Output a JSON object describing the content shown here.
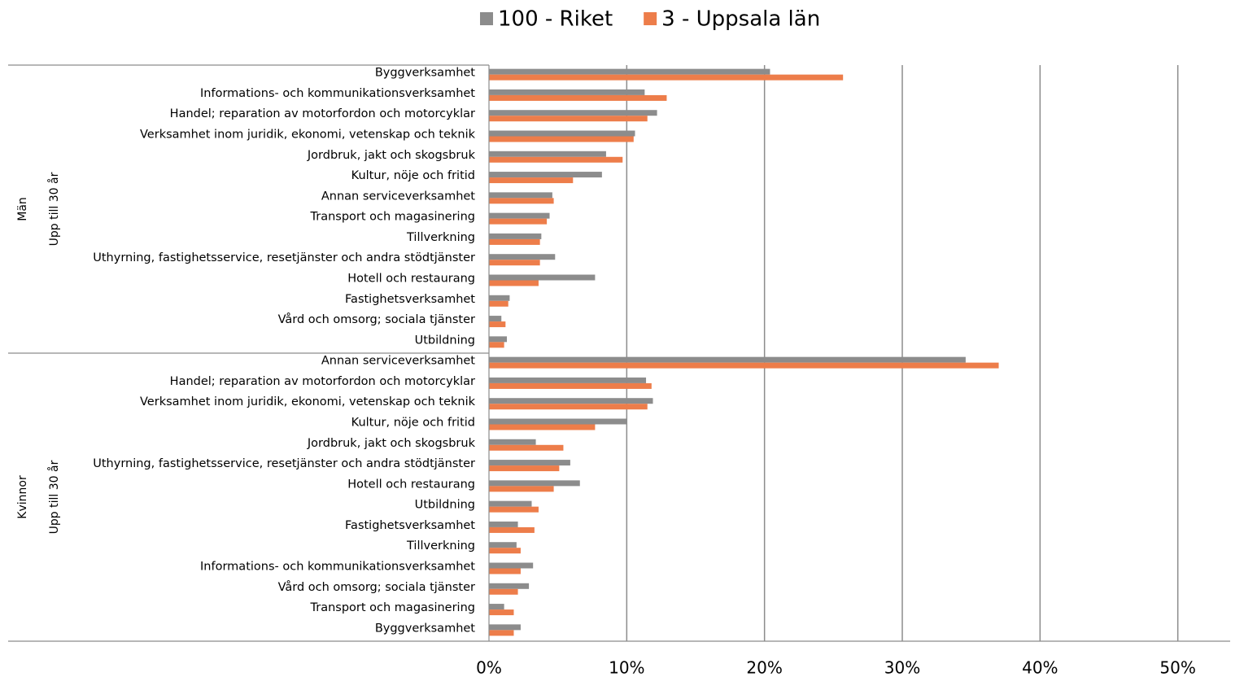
{
  "chart_data": {
    "type": "bar",
    "orientation": "horizontal",
    "groups": [
      {
        "label": "Män",
        "sublabel": "Upp till 30 år",
        "categories": [
          "Byggverksamhet",
          "Informations- och kommunikationsverksamhet",
          "Handel; reparation av motorfordon och motorcyklar",
          "Verksamhet inom juridik, ekonomi, vetenskap och teknik",
          "Jordbruk, jakt och skogsbruk",
          "Kultur, nöje och fritid",
          "Annan serviceverksamhet",
          "Transport och magasinering",
          "Tillverkning",
          "Uthyrning, fastighetsservice, resetjänster och andra stödtjänster",
          "Hotell och restaurang",
          "Fastighetsverksamhet",
          "Vård och omsorg; sociala tjänster",
          "Utbildning"
        ]
      },
      {
        "label": "Kvinnor",
        "sublabel": "Upp till 30 år",
        "categories": [
          "Annan serviceverksamhet",
          "Handel; reparation av motorfordon och motorcyklar",
          "Verksamhet inom juridik, ekonomi, vetenskap och teknik",
          "Kultur, nöje och fritid",
          "Jordbruk, jakt och skogsbruk",
          "Uthyrning, fastighetsservice, resetjänster och andra stödtjänster",
          "Hotell och restaurang",
          "Utbildning",
          "Fastighetsverksamhet",
          "Tillverkning",
          "Informations- och kommunikationsverksamhet",
          "Vård och omsorg; sociala tjänster",
          "Transport och magasinering",
          "Byggverksamhet"
        ]
      }
    ],
    "series": [
      {
        "name": "100 - Riket",
        "color": "#8c8c8c",
        "values": [
          20.4,
          11.3,
          12.2,
          10.6,
          8.5,
          8.2,
          4.6,
          4.4,
          3.8,
          4.8,
          7.7,
          1.5,
          0.9,
          1.3,
          34.6,
          11.4,
          11.9,
          10.0,
          3.4,
          5.9,
          6.6,
          3.1,
          2.1,
          2.0,
          3.2,
          2.9,
          1.1,
          2.3
        ]
      },
      {
        "name": "3 - Uppsala län",
        "color": "#ed7d4a",
        "values": [
          25.7,
          12.9,
          11.5,
          10.5,
          9.7,
          6.1,
          4.7,
          4.2,
          3.7,
          3.7,
          3.6,
          1.4,
          1.2,
          1.1,
          37.0,
          11.8,
          11.5,
          7.7,
          5.4,
          5.1,
          4.7,
          3.6,
          3.3,
          2.3,
          2.3,
          2.1,
          1.8,
          1.8
        ]
      }
    ],
    "xlim": [
      0,
      53.8
    ],
    "xticks": [
      {
        "value": 0,
        "label": "0%"
      },
      {
        "value": 10,
        "label": "10%"
      },
      {
        "value": 20,
        "label": "20%"
      },
      {
        "value": 30,
        "label": "30%"
      },
      {
        "value": 40,
        "label": "40%"
      },
      {
        "value": 50,
        "label": "50%"
      }
    ],
    "grid": true,
    "legend": "top"
  }
}
